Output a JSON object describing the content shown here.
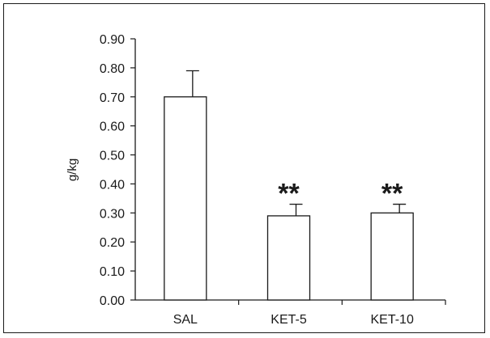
{
  "chart_data": {
    "type": "bar",
    "title": "",
    "xlabel": "",
    "ylabel": "g/kg",
    "ylim": [
      0,
      0.9
    ],
    "ytick_values": [
      0,
      0.1,
      0.2,
      0.3,
      0.4,
      0.5,
      0.6,
      0.7,
      0.8,
      0.9
    ],
    "ytick_labels": [
      "0.00",
      "0.10",
      "0.20",
      "0.30",
      "0.40",
      "0.50",
      "0.60",
      "0.70",
      "0.80",
      "0.90"
    ],
    "categories": [
      "SAL",
      "KET-5",
      "KET-10"
    ],
    "values": [
      0.7,
      0.29,
      0.3
    ],
    "errors": [
      0.09,
      0.04,
      0.03
    ],
    "annotations": [
      "",
      "**",
      "**"
    ],
    "bar_fill": "#ffffff",
    "bar_stroke": "#1a1a1a",
    "grid": false,
    "legend": "none"
  }
}
